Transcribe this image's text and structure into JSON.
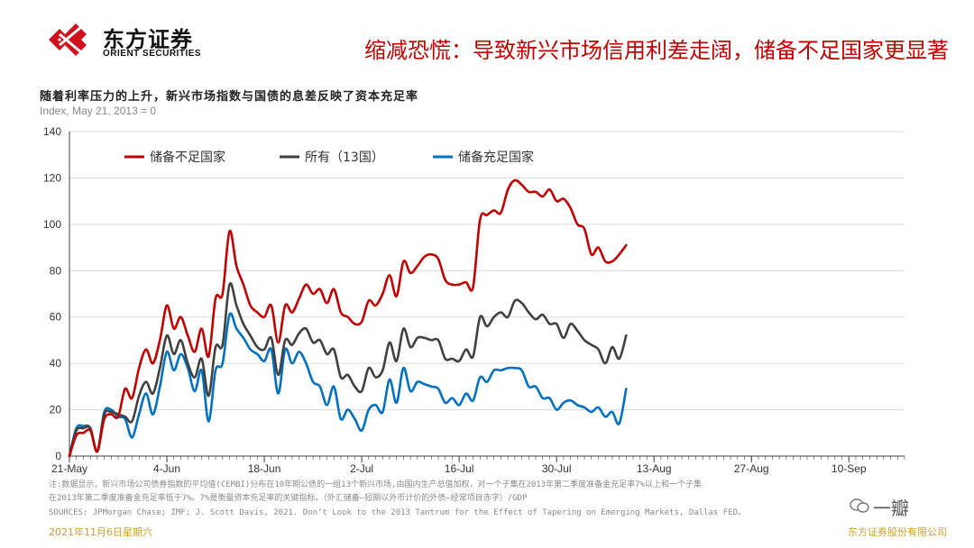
{
  "header": {
    "logo_cn": "东方证券",
    "logo_en": "ORIENT SECURITIES",
    "headline": "缩减恐慌：导致新兴市场信用利差走阔，储备不足国家更显著"
  },
  "chart_title": "随着利率压力的上升，新兴市场指数与国债的息差反映了资本充足率",
  "index_note": "Index, May 21, 2013 = 0",
  "chart_data": {
    "type": "line",
    "title": "随着利率压力的上升，新兴市场指数与国债的息差反映了资本充足率",
    "ylabel": "Index, May 21, 2013 = 0",
    "ylim": [
      0,
      140
    ],
    "yticks": [
      "0",
      "20",
      "40",
      "60",
      "80",
      "100",
      "120",
      "140"
    ],
    "xticks": [
      "21-May",
      "4-Jun",
      "18-Jun",
      "2-Jul",
      "16-Jul",
      "30-Jul",
      "13-Aug",
      "27-Aug",
      "10-Sep"
    ],
    "x_index": [
      0,
      2,
      4,
      6,
      8,
      10,
      12,
      14,
      16,
      18,
      20,
      22,
      24,
      26,
      28,
      30,
      32,
      34,
      36,
      38,
      40,
      42,
      44,
      46,
      48,
      50,
      52,
      54,
      56,
      58,
      60,
      62,
      64,
      66,
      68,
      70,
      72,
      74,
      76,
      78,
      80,
      82,
      84,
      86,
      88,
      90,
      92,
      94,
      96,
      98,
      100,
      102,
      104,
      106,
      108,
      110,
      112,
      114,
      116,
      118,
      120,
      122,
      124,
      126,
      128,
      130,
      132,
      134,
      136,
      138,
      140,
      142,
      144,
      146,
      148,
      150,
      152,
      154,
      156,
      158,
      160,
      162,
      164,
      166,
      168,
      170,
      172,
      174,
      176,
      178,
      180,
      182,
      184,
      186,
      188,
      190,
      192,
      194,
      196,
      198,
      200,
      202,
      204,
      206,
      208,
      210,
      212,
      214,
      216,
      218,
      220,
      222,
      224,
      226,
      228,
      230,
      232,
      234,
      236,
      238,
      240
    ],
    "legend_position": "top",
    "series": [
      {
        "name": "储备不足国家",
        "color": "#c00000",
        "values": [
          0,
          9,
          10,
          11,
          2,
          16,
          18,
          17,
          29,
          25,
          38,
          46,
          40,
          50,
          65,
          55,
          60,
          52,
          45,
          55,
          43,
          68,
          70,
          97,
          82,
          74,
          65,
          62,
          60,
          65,
          49,
          65,
          62,
          68,
          74,
          70,
          72,
          66,
          72,
          62,
          60,
          57,
          58,
          67,
          65,
          70,
          78,
          69,
          84,
          79,
          82,
          86,
          87,
          85,
          76,
          74,
          74,
          75,
          73,
          102,
          104,
          106,
          105,
          115,
          119,
          117,
          114,
          114,
          112,
          115,
          110,
          111,
          107,
          100,
          98,
          87,
          90,
          84,
          84,
          87,
          91
        ]
      },
      {
        "name": "所有（13国）",
        "color": "#404040",
        "values": [
          0,
          11,
          12,
          12,
          2,
          18,
          19,
          18,
          17,
          15,
          26,
          32,
          27,
          38,
          52,
          44,
          50,
          40,
          34,
          42,
          26,
          47,
          48,
          74,
          65,
          57,
          52,
          47,
          46,
          51,
          35,
          50,
          48,
          53,
          55,
          49,
          50,
          44,
          46,
          34,
          35,
          30,
          28,
          38,
          34,
          37,
          49,
          41,
          55,
          47,
          51,
          51,
          50,
          50,
          42,
          42,
          41,
          46,
          43,
          60,
          56,
          60,
          62,
          60,
          67,
          66,
          62,
          59,
          61,
          57,
          57,
          51,
          57,
          54,
          50,
          48,
          46,
          40,
          47,
          42,
          52
        ]
      },
      {
        "name": "储备充足国家",
        "color": "#0070c0",
        "values": [
          0,
          12,
          13,
          12,
          2,
          19,
          20,
          17,
          16,
          8,
          18,
          27,
          18,
          30,
          45,
          37,
          44,
          38,
          28,
          37,
          15,
          37,
          40,
          61,
          55,
          51,
          46,
          44,
          41,
          46,
          27,
          46,
          40,
          45,
          40,
          32,
          30,
          22,
          30,
          16,
          20,
          16,
          11,
          20,
          22,
          19,
          33,
          23,
          38,
          28,
          32,
          31,
          30,
          29,
          23,
          25,
          22,
          27,
          24,
          34,
          32,
          37,
          37,
          38,
          38,
          37,
          30,
          30,
          25,
          25,
          20,
          23,
          24,
          22,
          21,
          19,
          21,
          17,
          19,
          14,
          29
        ]
      }
    ]
  },
  "notes": {
    "line1": "注:数据显示，新兴市场公司债券指数的平均值(CEMBI)分布在10年期公债的一组13个新兴市场,由国内生产总值加权，对一个子集在2013年第二季度准备金充足率7%以上和一个子集",
    "line2": "在2013年第二季度准备金充足率低于7%。7%是衡量资本充足率的关键指标。（外汇储备—短期以外币计价的外债—经常项目赤字）/GDP",
    "line3": "SOURCES: JPMorgan Chase; IMF; J. Scott Davis, 2021. Don’t Look to the 2013 Tantrum for the Effect of Tapering on Emerging Markets, Dallas FED。"
  },
  "footer": {
    "date": "2021年11月6日星期六",
    "company": "东方证券股份有限公司",
    "watermark": "一瓣"
  }
}
